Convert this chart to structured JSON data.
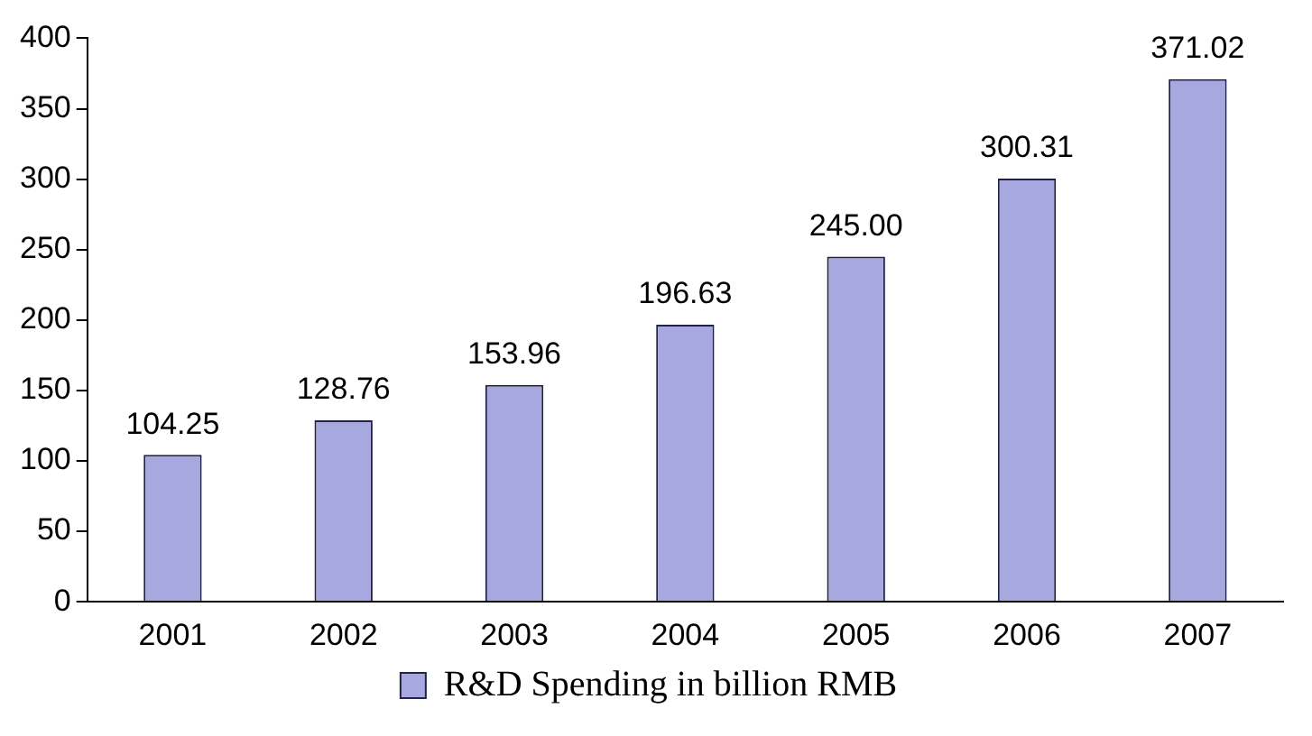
{
  "chart_data": {
    "type": "bar",
    "categories": [
      "2001",
      "2002",
      "2003",
      "2004",
      "2005",
      "2006",
      "2007"
    ],
    "series": [
      {
        "name": "R&D Spending in billion RMB",
        "color": "#a8a8e0",
        "values": [
          104.25,
          128.76,
          153.96,
          196.63,
          245.0,
          300.31,
          371.02
        ],
        "value_labels": [
          "104.25",
          "128.76",
          "153.96",
          "196.63",
          "245.00",
          "300.31",
          "371.02"
        ]
      }
    ],
    "ylim": [
      0,
      400
    ],
    "yticks": [
      0,
      50,
      100,
      150,
      200,
      250,
      300,
      350,
      400
    ],
    "grid": false,
    "legend": "bottom"
  }
}
